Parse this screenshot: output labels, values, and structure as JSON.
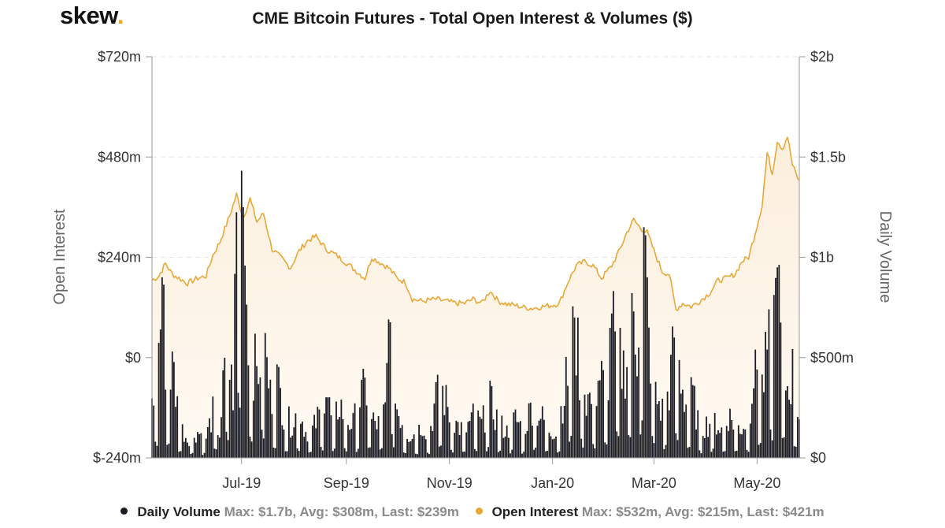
{
  "header": {
    "logo_text": "skew",
    "logo_dot": ".",
    "title": "CME Bitcoin Futures - Total Open Interest & Volumes ($)"
  },
  "colors": {
    "volume": "#1c1d24",
    "open_interest": "#e8a838",
    "open_interest_fill": "#fbeedc",
    "grid": "#e6e6e6",
    "axis": "#9a9a9a"
  },
  "chart_data": {
    "type": "bar+area",
    "title": "CME Bitcoin Futures - Total Open Interest & Volumes ($)",
    "x_tick_labels": [
      "Jul-19",
      "Sep-19",
      "Nov-19",
      "Jan-20",
      "Mar-20",
      "May-20"
    ],
    "x_ticks": [
      "2019-07-01",
      "2019-09-01",
      "2019-11-01",
      "2020-01-01",
      "2020-03-01",
      "2020-05-01"
    ],
    "x_range": [
      "2019-05-09",
      "2020-05-26"
    ],
    "y_left": {
      "label": "Open Interest",
      "range": [
        -240,
        720
      ],
      "tick_labels": [
        "$-240m",
        "$0",
        "$240m",
        "$480m",
        "$720m"
      ],
      "ticks": [
        -240,
        0,
        240,
        480,
        720
      ],
      "unit": "$m"
    },
    "y_right": {
      "label": "Daily Volume",
      "range": [
        0,
        2000
      ],
      "tick_labels": [
        "$0",
        "$500m",
        "$1b",
        "$1.5b",
        "$2b"
      ],
      "ticks": [
        0,
        500,
        1000,
        1500,
        2000
      ],
      "unit": "$m"
    },
    "legend_position": "bottom-center",
    "grid": "horizontal dashed",
    "series": [
      {
        "name": "Daily Volume",
        "type": "bar",
        "axis": "right",
        "stats": "Max: $1.7b, Avg: $308m, Last: $239m",
        "keypoints": [
          [
            "2019-05-09",
            330
          ],
          [
            "2019-05-12",
            400
          ],
          [
            "2019-05-15",
            900
          ],
          [
            "2019-05-18",
            360
          ],
          [
            "2019-05-21",
            530
          ],
          [
            "2019-05-24",
            280
          ],
          [
            "2019-05-27",
            150
          ],
          [
            "2019-05-30",
            100
          ],
          [
            "2019-06-05",
            140
          ],
          [
            "2019-06-10",
            110
          ],
          [
            "2019-06-14",
            240
          ],
          [
            "2019-06-18",
            130
          ],
          [
            "2019-06-22",
            580
          ],
          [
            "2019-06-26",
            350
          ],
          [
            "2019-06-29",
            1700
          ],
          [
            "2019-07-02",
            1250
          ],
          [
            "2019-07-06",
            580
          ],
          [
            "2019-07-10",
            450
          ],
          [
            "2019-07-14",
            650
          ],
          [
            "2019-07-18",
            330
          ],
          [
            "2019-07-22",
            420
          ],
          [
            "2019-07-26",
            250
          ],
          [
            "2019-07-30",
            180
          ],
          [
            "2019-08-04",
            260
          ],
          [
            "2019-08-08",
            140
          ],
          [
            "2019-08-12",
            150
          ],
          [
            "2019-08-16",
            230
          ],
          [
            "2019-08-20",
            380
          ],
          [
            "2019-08-24",
            160
          ],
          [
            "2019-08-28",
            300
          ],
          [
            "2019-09-01",
            200
          ],
          [
            "2019-09-05",
            180
          ],
          [
            "2019-09-09",
            320
          ],
          [
            "2019-09-13",
            370
          ],
          [
            "2019-09-16",
            200
          ],
          [
            "2019-09-20",
            180
          ],
          [
            "2019-09-24",
            260
          ],
          [
            "2019-09-26",
            690
          ],
          [
            "2019-09-30",
            300
          ],
          [
            "2019-10-04",
            200
          ],
          [
            "2019-10-08",
            120
          ],
          [
            "2019-10-12",
            130
          ],
          [
            "2019-10-16",
            180
          ],
          [
            "2019-10-20",
            120
          ],
          [
            "2019-10-24",
            320
          ],
          [
            "2019-10-28",
            350
          ],
          [
            "2019-11-01",
            240
          ],
          [
            "2019-11-05",
            180
          ],
          [
            "2019-11-10",
            140
          ],
          [
            "2019-11-15",
            220
          ],
          [
            "2019-11-20",
            180
          ],
          [
            "2019-11-25",
            300
          ],
          [
            "2019-11-30",
            190
          ],
          [
            "2019-12-05",
            140
          ],
          [
            "2019-12-10",
            210
          ],
          [
            "2019-12-15",
            150
          ],
          [
            "2019-12-20",
            290
          ],
          [
            "2019-12-26",
            210
          ],
          [
            "2019-12-31",
            140
          ],
          [
            "2020-01-04",
            160
          ],
          [
            "2020-01-08",
            360
          ],
          [
            "2020-01-11",
            480
          ],
          [
            "2020-01-14",
            700
          ],
          [
            "2020-01-17",
            470
          ],
          [
            "2020-01-21",
            330
          ],
          [
            "2020-01-25",
            300
          ],
          [
            "2020-01-29",
            450
          ],
          [
            "2020-02-02",
            330
          ],
          [
            "2020-02-05",
            720
          ],
          [
            "2020-02-08",
            560
          ],
          [
            "2020-02-12",
            480
          ],
          [
            "2020-02-15",
            600
          ],
          [
            "2020-02-18",
            730
          ],
          [
            "2020-02-21",
            550
          ],
          [
            "2020-02-24",
            1150
          ],
          [
            "2020-02-27",
            650
          ],
          [
            "2020-03-02",
            330
          ],
          [
            "2020-03-06",
            250
          ],
          [
            "2020-03-10",
            380
          ],
          [
            "2020-03-13",
            600
          ],
          [
            "2020-03-16",
            480
          ],
          [
            "2020-03-20",
            290
          ],
          [
            "2020-03-24",
            330
          ],
          [
            "2020-03-28",
            160
          ],
          [
            "2020-04-01",
            180
          ],
          [
            "2020-04-06",
            200
          ],
          [
            "2020-04-10",
            150
          ],
          [
            "2020-04-14",
            230
          ],
          [
            "2020-04-18",
            180
          ],
          [
            "2020-04-22",
            160
          ],
          [
            "2020-04-26",
            220
          ],
          [
            "2020-04-30",
            540
          ],
          [
            "2020-05-04",
            380
          ],
          [
            "2020-05-07",
            540
          ],
          [
            "2020-05-10",
            650
          ],
          [
            "2020-05-13",
            950
          ],
          [
            "2020-05-16",
            480
          ],
          [
            "2020-05-19",
            380
          ],
          [
            "2020-05-22",
            450
          ],
          [
            "2020-05-26",
            240
          ]
        ]
      },
      {
        "name": "Open Interest",
        "type": "area",
        "axis": "left",
        "stats": "Max: $532m, Avg: $215m, Last: $421m",
        "keypoints": [
          [
            "2019-05-09",
            185
          ],
          [
            "2019-05-13",
            195
          ],
          [
            "2019-05-17",
            225
          ],
          [
            "2019-05-21",
            200
          ],
          [
            "2019-05-25",
            190
          ],
          [
            "2019-05-30",
            178
          ],
          [
            "2019-06-05",
            190
          ],
          [
            "2019-06-10",
            195
          ],
          [
            "2019-06-14",
            245
          ],
          [
            "2019-06-18",
            275
          ],
          [
            "2019-06-24",
            340
          ],
          [
            "2019-06-28",
            390
          ],
          [
            "2019-07-02",
            335
          ],
          [
            "2019-07-06",
            380
          ],
          [
            "2019-07-10",
            325
          ],
          [
            "2019-07-14",
            345
          ],
          [
            "2019-07-19",
            260
          ],
          [
            "2019-07-24",
            240
          ],
          [
            "2019-07-30",
            215
          ],
          [
            "2019-08-04",
            255
          ],
          [
            "2019-08-09",
            280
          ],
          [
            "2019-08-14",
            290
          ],
          [
            "2019-08-20",
            260
          ],
          [
            "2019-08-26",
            245
          ],
          [
            "2019-08-31",
            230
          ],
          [
            "2019-09-06",
            210
          ],
          [
            "2019-09-12",
            190
          ],
          [
            "2019-09-16",
            240
          ],
          [
            "2019-09-20",
            230
          ],
          [
            "2019-09-26",
            215
          ],
          [
            "2019-10-01",
            190
          ],
          [
            "2019-10-06",
            180
          ],
          [
            "2019-10-10",
            140
          ],
          [
            "2019-10-16",
            135
          ],
          [
            "2019-10-24",
            140
          ],
          [
            "2019-10-30",
            135
          ],
          [
            "2019-11-05",
            130
          ],
          [
            "2019-11-10",
            130
          ],
          [
            "2019-11-15",
            140
          ],
          [
            "2019-11-20",
            130
          ],
          [
            "2019-11-25",
            160
          ],
          [
            "2019-11-30",
            135
          ],
          [
            "2019-12-05",
            128
          ],
          [
            "2019-12-10",
            125
          ],
          [
            "2019-12-15",
            120
          ],
          [
            "2019-12-20",
            118
          ],
          [
            "2019-12-26",
            122
          ],
          [
            "2019-12-31",
            125
          ],
          [
            "2020-01-05",
            130
          ],
          [
            "2020-01-10",
            180
          ],
          [
            "2020-01-15",
            220
          ],
          [
            "2020-01-20",
            230
          ],
          [
            "2020-01-25",
            220
          ],
          [
            "2020-01-30",
            190
          ],
          [
            "2020-02-05",
            220
          ],
          [
            "2020-02-10",
            260
          ],
          [
            "2020-02-14",
            300
          ],
          [
            "2020-02-18",
            330
          ],
          [
            "2020-02-22",
            310
          ],
          [
            "2020-02-26",
            300
          ],
          [
            "2020-03-02",
            245
          ],
          [
            "2020-03-06",
            205
          ],
          [
            "2020-03-10",
            200
          ],
          [
            "2020-03-14",
            115
          ],
          [
            "2020-03-18",
            130
          ],
          [
            "2020-03-23",
            122
          ],
          [
            "2020-03-28",
            135
          ],
          [
            "2020-04-03",
            155
          ],
          [
            "2020-04-08",
            185
          ],
          [
            "2020-04-13",
            190
          ],
          [
            "2020-04-18",
            200
          ],
          [
            "2020-04-22",
            230
          ],
          [
            "2020-04-26",
            240
          ],
          [
            "2020-04-30",
            300
          ],
          [
            "2020-05-04",
            365
          ],
          [
            "2020-05-07",
            490
          ],
          [
            "2020-05-10",
            440
          ],
          [
            "2020-05-13",
            520
          ],
          [
            "2020-05-16",
            500
          ],
          [
            "2020-05-19",
            530
          ],
          [
            "2020-05-22",
            460
          ],
          [
            "2020-05-26",
            421
          ]
        ]
      }
    ]
  },
  "legend": [
    {
      "name": "Daily Volume",
      "stats": "Max: $1.7b, Avg: $308m, Last: $239m"
    },
    {
      "name": "Open Interest",
      "stats": "Max: $532m, Avg: $215m, Last: $421m"
    }
  ]
}
